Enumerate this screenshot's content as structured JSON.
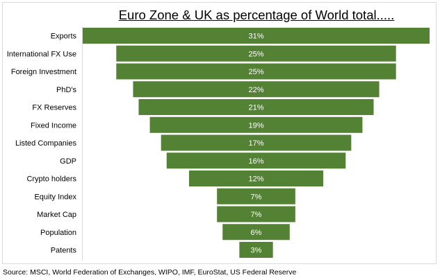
{
  "chart_data": {
    "type": "bar",
    "orientation": "horizontal-funnel",
    "title": "Euro Zone & UK as percentage of World total.....",
    "categories": [
      "Exports",
      "International FX Use",
      "Foreign Investment",
      "PhD's",
      "FX Reserves",
      "Fixed Income",
      "Listed Companies",
      "GDP",
      "Crypto holders",
      "Equity Index",
      "Market Cap",
      "Population",
      "Patents"
    ],
    "values": [
      31,
      25,
      25,
      22,
      21,
      19,
      17,
      16,
      12,
      7,
      7,
      6,
      3
    ],
    "data_labels": [
      "31%",
      "25%",
      "25%",
      "22%",
      "21%",
      "19%",
      "17%",
      "16%",
      "12%",
      "7%",
      "7%",
      "6%",
      "3%"
    ],
    "unit": "%",
    "bar_color": "#548235",
    "grid": false,
    "legend": "none",
    "source": "Source: MSCI, World Federation of Exchanges, WIPO, IMF, EuroStat, US Federal Reserve"
  }
}
